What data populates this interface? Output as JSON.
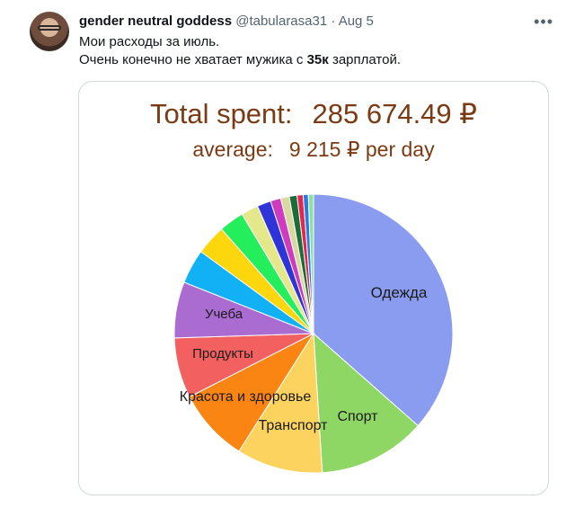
{
  "tweet": {
    "display_name": "gender neutral goddess",
    "handle": "@tabularasa31",
    "separator": "·",
    "date": "Aug 5",
    "line1": "Мои расходы за июль.",
    "line2_before": "Очень конечно не хватает мужика с ",
    "line2_bold": "35к",
    "line2_after": " зарплатой."
  },
  "icons": {
    "more": "more-horizontal-icon"
  },
  "chart_data": {
    "type": "pie",
    "title_label": "Total spent:",
    "title_value": "285 674.49 ₽",
    "subtitle_label": "average:",
    "subtitle_value": "9 215 ₽ per day",
    "slices": [
      {
        "label": "Одежда",
        "value": 36.5,
        "color": "#8a9cf0"
      },
      {
        "label": "Спорт",
        "value": 12.5,
        "color": "#8ed764"
      },
      {
        "label": "Транспорт",
        "value": 10.0,
        "color": "#fcd35e"
      },
      {
        "label": "Красота и здоровье",
        "value": 8.5,
        "color": "#fb8512"
      },
      {
        "label": "Продукты",
        "value": 7.0,
        "color": "#f2605f"
      },
      {
        "label": "Учеба",
        "value": 6.5,
        "color": "#aa6cd0"
      },
      {
        "label": "",
        "value": 4.0,
        "color": "#12b1f6"
      },
      {
        "label": "",
        "value": 3.5,
        "color": "#fdd70d"
      },
      {
        "label": "",
        "value": 2.9,
        "color": "#24ee5c"
      },
      {
        "label": "",
        "value": 2.0,
        "color": "#e5e88a"
      },
      {
        "label": "",
        "value": 1.6,
        "color": "#2e34d8"
      },
      {
        "label": "",
        "value": 1.2,
        "color": "#cf3bbe"
      },
      {
        "label": "",
        "value": 1.0,
        "color": "#d8d8a0"
      },
      {
        "label": "",
        "value": 0.9,
        "color": "#1e6b3a"
      },
      {
        "label": "",
        "value": 0.7,
        "color": "#e2264d"
      },
      {
        "label": "",
        "value": 0.6,
        "color": "#2c7ae6"
      },
      {
        "label": "",
        "value": 0.6,
        "color": "#8fe0a0"
      }
    ]
  }
}
